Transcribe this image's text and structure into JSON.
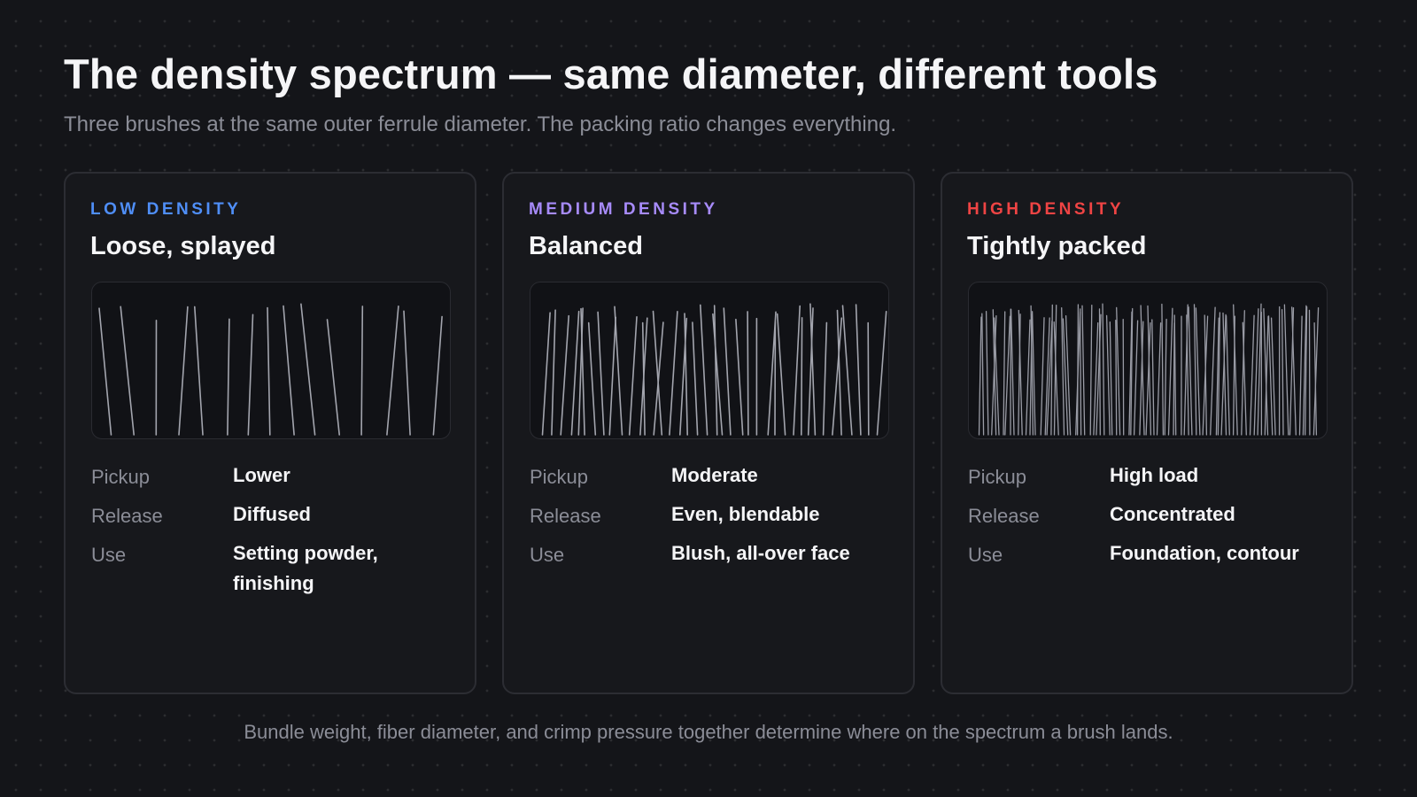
{
  "header": {
    "title": "The density spectrum — same diameter, different tools",
    "subtitle": "Three brushes at the same outer ferrule diameter. The packing ratio changes everything."
  },
  "cards": [
    {
      "tag": "LOW DENSITY",
      "tag_color": "#4f8ef7",
      "name": "Loose, splayed",
      "bristle_count": 15,
      "bristle_icon": "loose-bristles-illustration",
      "props": [
        {
          "label": "Pickup",
          "value": "Lower"
        },
        {
          "label": "Release",
          "value": "Diffused"
        },
        {
          "label": "Use",
          "value": "Setting powder, finishing"
        }
      ]
    },
    {
      "tag": "MEDIUM DENSITY",
      "tag_color": "#a78bfa",
      "name": "Balanced",
      "bristle_count": 40,
      "bristle_icon": "medium-bristles-illustration",
      "props": [
        {
          "label": "Pickup",
          "value": "Moderate"
        },
        {
          "label": "Release",
          "value": "Even, blendable"
        },
        {
          "label": "Use",
          "value": "Blush, all-over face"
        }
      ]
    },
    {
      "tag": "HIGH DENSITY",
      "tag_color": "#ef4444",
      "name": "Tightly packed",
      "bristle_count": 90,
      "bristle_icon": "dense-bristles-illustration",
      "props": [
        {
          "label": "Pickup",
          "value": "High load"
        },
        {
          "label": "Release",
          "value": "Concentrated"
        },
        {
          "label": "Use",
          "value": "Foundation, contour"
        }
      ]
    }
  ],
  "footer": "Bundle weight, fiber diameter, and crimp pressure together determine where on the spectrum a brush lands."
}
